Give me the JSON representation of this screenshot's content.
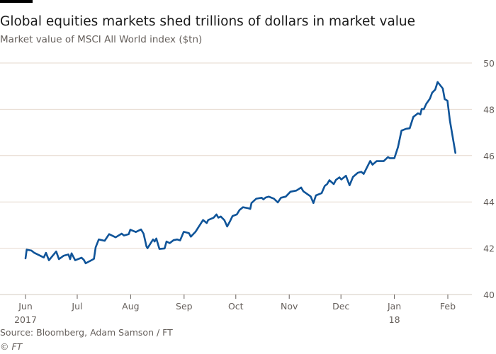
{
  "header": {
    "title": "Global equities markets shed trillions of dollars in market value",
    "subtitle": "Market value of MSCI All World index ($tn)"
  },
  "footer": {
    "source": "Source: Bloomberg, Adam Samson / FT",
    "copyright": "© FT"
  },
  "colors": {
    "line": "#0f5499",
    "grid": "#e6d9ce",
    "text": "#66605c"
  },
  "chart_data": {
    "type": "line",
    "title": "Global equities markets shed trillions of dollars in market value",
    "subtitle": "Market value of MSCI All World index ($tn)",
    "xlabel": "",
    "ylabel": "$tn",
    "x_unit": "days since 2017-06-01",
    "xlim": [
      0,
      250
    ],
    "ylim": [
      40,
      50
    ],
    "yticks": [
      40,
      42,
      44,
      46,
      48,
      50
    ],
    "xticks": [
      {
        "day": 0,
        "label": "Jun",
        "sublabel": "2017"
      },
      {
        "day": 30,
        "label": "Jul",
        "sublabel": ""
      },
      {
        "day": 61,
        "label": "Aug",
        "sublabel": ""
      },
      {
        "day": 92,
        "label": "Sep",
        "sublabel": ""
      },
      {
        "day": 122,
        "label": "Oct",
        "sublabel": ""
      },
      {
        "day": 153,
        "label": "Nov",
        "sublabel": ""
      },
      {
        "day": 183,
        "label": "Dec",
        "sublabel": ""
      },
      {
        "day": 214,
        "label": "Jan",
        "sublabel": "18"
      },
      {
        "day": 245,
        "label": "Feb",
        "sublabel": ""
      }
    ],
    "grid": true,
    "y_axis_side": "right",
    "series": [
      {
        "name": "MSCI All World market value",
        "points": [
          [
            0,
            41.56
          ],
          [
            0.7,
            41.94
          ],
          [
            3.4,
            41.9
          ],
          [
            5.1,
            41.8
          ],
          [
            10.6,
            41.6
          ],
          [
            11.9,
            41.8
          ],
          [
            13.6,
            41.48
          ],
          [
            17.8,
            41.86
          ],
          [
            19.4,
            41.53
          ],
          [
            22.2,
            41.68
          ],
          [
            24.9,
            41.73
          ],
          [
            25.9,
            41.53
          ],
          [
            26.7,
            41.78
          ],
          [
            28.8,
            41.48
          ],
          [
            32.5,
            41.59
          ],
          [
            33.8,
            41.5
          ],
          [
            34.9,
            41.35
          ],
          [
            39.7,
            41.54
          ],
          [
            40.7,
            42.04
          ],
          [
            42.5,
            42.38
          ],
          [
            45.9,
            42.32
          ],
          [
            48.5,
            42.61
          ],
          [
            52.3,
            42.47
          ],
          [
            55.8,
            42.63
          ],
          [
            57.1,
            42.55
          ],
          [
            59.9,
            42.61
          ],
          [
            60.8,
            42.8
          ],
          [
            64,
            42.7
          ],
          [
            67,
            42.81
          ],
          [
            68.5,
            42.63
          ],
          [
            70.2,
            42.07
          ],
          [
            70.8,
            42.0
          ],
          [
            74,
            42.38
          ],
          [
            74.9,
            42.29
          ],
          [
            75.9,
            42.42
          ],
          [
            77.7,
            41.97
          ],
          [
            80.7,
            41.99
          ],
          [
            81.8,
            42.29
          ],
          [
            83.6,
            42.22
          ],
          [
            85.9,
            42.35
          ],
          [
            88,
            42.38
          ],
          [
            89.7,
            42.34
          ],
          [
            91.8,
            42.71
          ],
          [
            94.8,
            42.65
          ],
          [
            95.9,
            42.5
          ],
          [
            98.6,
            42.71
          ],
          [
            103,
            43.22
          ],
          [
            105.1,
            43.09
          ],
          [
            106,
            43.22
          ],
          [
            109.2,
            43.32
          ],
          [
            110.8,
            43.46
          ],
          [
            111.9,
            43.32
          ],
          [
            113.3,
            43.37
          ],
          [
            115.4,
            43.21
          ],
          [
            117,
            42.94
          ],
          [
            118.8,
            43.19
          ],
          [
            120.1,
            43.39
          ],
          [
            122.6,
            43.46
          ],
          [
            124.2,
            43.65
          ],
          [
            126.1,
            43.77
          ],
          [
            129,
            43.73
          ],
          [
            130.4,
            43.7
          ],
          [
            131.1,
            43.95
          ],
          [
            133.9,
            44.14
          ],
          [
            137,
            44.18
          ],
          [
            138,
            44.11
          ],
          [
            139.3,
            44.19
          ],
          [
            141.1,
            44.23
          ],
          [
            144.1,
            44.14
          ],
          [
            146.4,
            43.98
          ],
          [
            148.2,
            44.18
          ],
          [
            151,
            44.23
          ],
          [
            153.7,
            44.44
          ],
          [
            157.1,
            44.49
          ],
          [
            159.9,
            44.62
          ],
          [
            161.2,
            44.46
          ],
          [
            165.4,
            44.24
          ],
          [
            167,
            43.95
          ],
          [
            168.5,
            44.28
          ],
          [
            171.8,
            44.38
          ],
          [
            173.6,
            44.69
          ],
          [
            175,
            44.77
          ],
          [
            176.3,
            44.94
          ],
          [
            178.8,
            44.77
          ],
          [
            180.1,
            44.95
          ],
          [
            182.1,
            45.06
          ],
          [
            183.2,
            44.97
          ],
          [
            185.9,
            45.13
          ],
          [
            188,
            44.72
          ],
          [
            190,
            45.08
          ],
          [
            192.8,
            45.26
          ],
          [
            194.8,
            45.3
          ],
          [
            196.2,
            45.21
          ],
          [
            200,
            45.77
          ],
          [
            201.3,
            45.61
          ],
          [
            203.7,
            45.76
          ],
          [
            207.8,
            45.76
          ],
          [
            210.3,
            45.94
          ],
          [
            211.3,
            45.89
          ],
          [
            214,
            45.89
          ],
          [
            216.1,
            46.37
          ],
          [
            218.1,
            47.08
          ],
          [
            220.8,
            47.16
          ],
          [
            222.9,
            47.18
          ],
          [
            225,
            47.67
          ],
          [
            227.7,
            47.83
          ],
          [
            229.1,
            47.78
          ],
          [
            229.8,
            48.01
          ],
          [
            231.1,
            48.01
          ],
          [
            232.5,
            48.24
          ],
          [
            234.6,
            48.46
          ],
          [
            235.9,
            48.72
          ],
          [
            237.7,
            48.85
          ],
          [
            239.1,
            49.18
          ],
          [
            242.1,
            48.9
          ],
          [
            243.2,
            48.44
          ],
          [
            244.8,
            48.37
          ],
          [
            246.2,
            47.52
          ],
          [
            249.4,
            46.12
          ]
        ]
      }
    ]
  }
}
